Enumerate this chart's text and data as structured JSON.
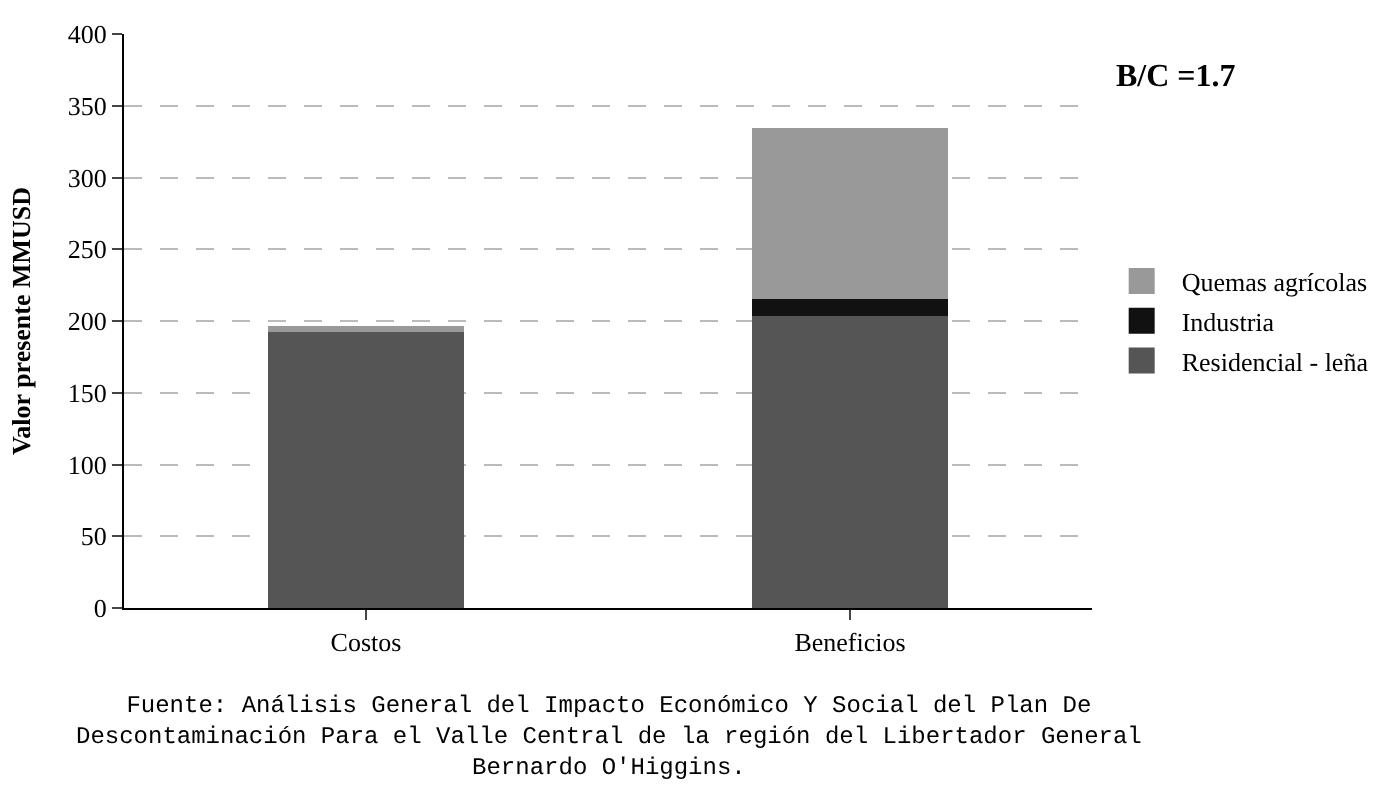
{
  "chart_data": {
    "type": "bar",
    "stacked": true,
    "ylabel": "Valor presente MMUSD",
    "categories": [
      "Costos",
      "Beneficios"
    ],
    "series": [
      {
        "name": "Residencial - leña",
        "color": "#555555",
        "values": [
          193,
          204
        ]
      },
      {
        "name": "Industria",
        "color": "#111111",
        "values": [
          0,
          12
        ]
      },
      {
        "name": "Quemas agrícolas",
        "color": "#999999",
        "values": [
          3,
          118
        ]
      }
    ],
    "ylim": [
      0,
      400
    ],
    "yticks": [
      0,
      50,
      100,
      150,
      200,
      250,
      300,
      350,
      400
    ],
    "grid": "y",
    "legend": "right",
    "annotations": [
      "B/C =1.7",
      "Fuente: Análisis General del Impacto Económico Y Social del Plan De Descontaminación Para el Valle Central de la región del Libertador General Bernardo O'Higgins."
    ]
  }
}
